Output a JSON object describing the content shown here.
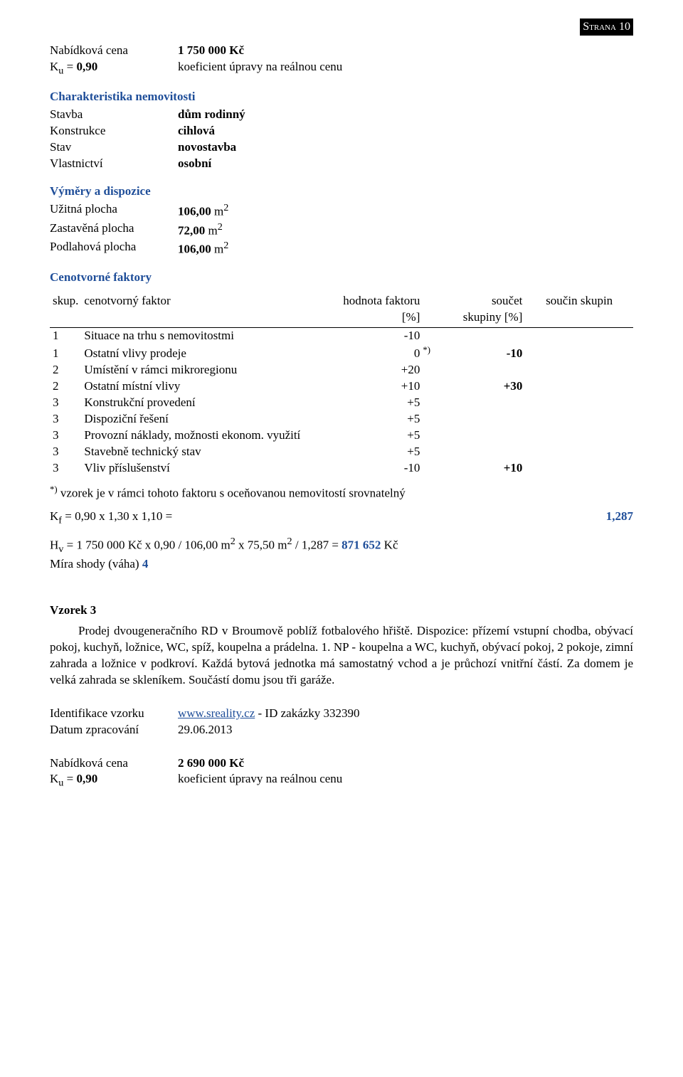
{
  "page_badge": "Strana 10",
  "offer1": {
    "price_label": "Nabídková cena",
    "price_value": "1 750 000 Kč",
    "ku_label_left": "K",
    "ku_sub": "u",
    "ku_eq": " = ",
    "ku_value": "0,90",
    "ku_desc": "koeficient úpravy na reálnou cenu"
  },
  "char": {
    "heading": "Charakteristika nemovitosti",
    "rows": [
      {
        "label": "Stavba",
        "value": "dům rodinný"
      },
      {
        "label": "Konstrukce",
        "value": "cihlová"
      },
      {
        "label": "Stav",
        "value": "novostavba"
      },
      {
        "label": "Vlastnictví",
        "value": "osobní"
      }
    ]
  },
  "dims": {
    "heading": "Výměry a dispozice",
    "rows": [
      {
        "label": "Užitná plocha",
        "value_num": "106,00",
        "unit_pre": " m",
        "unit_sup": "2"
      },
      {
        "label": "Zastavěná plocha",
        "value_num": "72,00",
        "unit_pre": " m",
        "unit_sup": "2"
      },
      {
        "label": "Podlahová plocha",
        "value_num": "106,00",
        "unit_pre": " m",
        "unit_sup": "2"
      }
    ]
  },
  "cenot_heading": "Cenotvorné faktory",
  "factor_table": {
    "head": {
      "skup": "skup.",
      "faktor": "cenotvorný faktor",
      "hodnota_top": "hodnota faktoru",
      "hodnota_bot": "[%]",
      "soucet_top": "součet",
      "soucet_bot": "skupiny [%]",
      "soucin": "součin skupin"
    },
    "rows": [
      {
        "idx": "1",
        "name": "Situace na trhu s nemovitostmi",
        "h": "-10",
        "star": "",
        "sum": "",
        "bold_sum": false
      },
      {
        "idx": "1",
        "name": "Ostatní vlivy prodeje",
        "h": "0",
        "star": "*)",
        "sum": "-10",
        "bold_sum": true
      },
      {
        "idx": "2",
        "name": "Umístění v rámci mikroregionu",
        "h": "+20",
        "star": "",
        "sum": "",
        "bold_sum": false
      },
      {
        "idx": "2",
        "name": "Ostatní místní vlivy",
        "h": "+10",
        "star": "",
        "sum": "+30",
        "bold_sum": true
      },
      {
        "idx": "3",
        "name": "Konstrukční provedení",
        "h": "+5",
        "star": "",
        "sum": "",
        "bold_sum": false
      },
      {
        "idx": "3",
        "name": "Dispoziční řešení",
        "h": "+5",
        "star": "",
        "sum": "",
        "bold_sum": false
      },
      {
        "idx": "3",
        "name": "Provozní náklady, možnosti ekonom. využití",
        "h": "+5",
        "star": "",
        "sum": "",
        "bold_sum": false
      },
      {
        "idx": "3",
        "name": "Stavebně technický stav",
        "h": "+5",
        "star": "",
        "sum": "",
        "bold_sum": false
      },
      {
        "idx": "3",
        "name": "Vliv příslušenství",
        "h": "-10",
        "star": "",
        "sum": "+10",
        "bold_sum": true
      }
    ]
  },
  "footnote": {
    "mark": "*)",
    "text": " vzorek je v rámci tohoto faktoru s oceňovanou nemovitostí srovnatelný"
  },
  "kf": {
    "left_pre": "K",
    "left_sub": "f",
    "left_rest": " = 0,90 x 1,30 x 1,10 =",
    "value": "1,287"
  },
  "hv": {
    "pre": "H",
    "sub": "v",
    "mid1": " = 1 750 000 Kč x 0,90 / 106,00 m",
    "sup1": "2",
    "mid2": " x 75,50 m",
    "sup2": "2",
    "mid3": " / 1,287 = ",
    "bold": "871 652",
    "tail": " Kč"
  },
  "mira": {
    "label": "Míra shody (váha)   ",
    "value": "4"
  },
  "vzorek3": {
    "heading": "Vzorek 3",
    "para": "Prodej dvougeneračního RD v Broumově poblíž fotbalového hřiště. Dispozice: přízemí vstupní chodba, obývací pokoj, kuchyň, ložnice, WC, spíž, koupelna a prádelna. 1. NP - koupelna a WC, kuchyň, obývací pokoj, 2 pokoje, zimní zahrada a ložnice v podkroví. Každá bytová jednotka má samostatný vchod a je průchozí vnitřní částí. Za domem je velká zahrada se skleníkem. Součástí domu jsou tři garáže."
  },
  "ident": {
    "label": "Identifikace vzorku",
    "link_text": "www.sreality.cz",
    "link_tail": " - ID zakázky 332390",
    "date_label": "Datum zpracování",
    "date_value": "29.06.2013"
  },
  "offer2": {
    "price_label": "Nabídková cena",
    "price_value": "2 690 000 Kč",
    "ku_label_left": "K",
    "ku_sub": "u",
    "ku_eq": " = ",
    "ku_value": "0,90",
    "ku_desc": "koeficient úpravy na reálnou cenu"
  }
}
